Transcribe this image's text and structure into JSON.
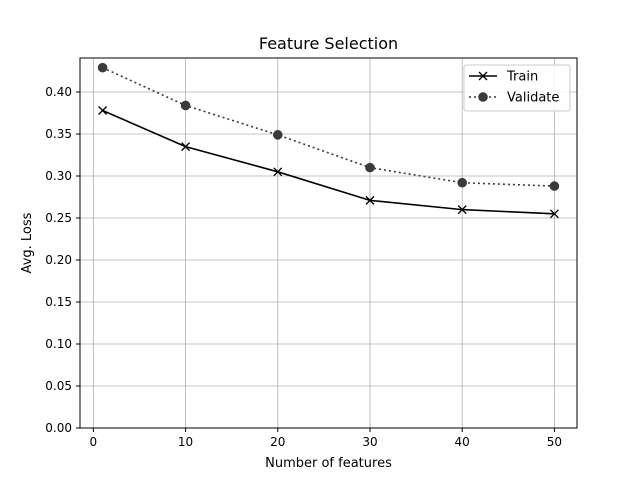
{
  "chart_data": {
    "type": "line",
    "title": "Feature Selection",
    "xlabel": "Number of features",
    "ylabel": "Avg. Loss",
    "xlim": [
      -1.45,
      52.45
    ],
    "ylim": [
      0,
      0.4405
    ],
    "xticks": [
      0,
      10,
      20,
      30,
      40,
      50
    ],
    "xtick_labels": [
      "0",
      "10",
      "20",
      "30",
      "40",
      "50"
    ],
    "yticks": [
      0,
      0.05,
      0.1,
      0.15,
      0.2,
      0.25,
      0.3,
      0.35,
      0.4
    ],
    "ytick_labels": [
      "0.00",
      "0.05",
      "0.10",
      "0.15",
      "0.20",
      "0.25",
      "0.30",
      "0.35",
      "0.40"
    ],
    "grid": true,
    "legend_position": "top-right",
    "x": [
      1,
      10,
      20,
      30,
      40,
      50
    ],
    "series": [
      {
        "name": "Train",
        "values": [
          0.378,
          0.335,
          0.305,
          0.271,
          0.26,
          0.255
        ],
        "color": "#000000",
        "line_style": "solid",
        "marker": "x"
      },
      {
        "name": "Validate",
        "values": [
          0.429,
          0.384,
          0.349,
          0.31,
          0.292,
          0.288
        ],
        "color": "#3a3a3a",
        "line_style": "dotted",
        "marker": "circle"
      }
    ]
  }
}
